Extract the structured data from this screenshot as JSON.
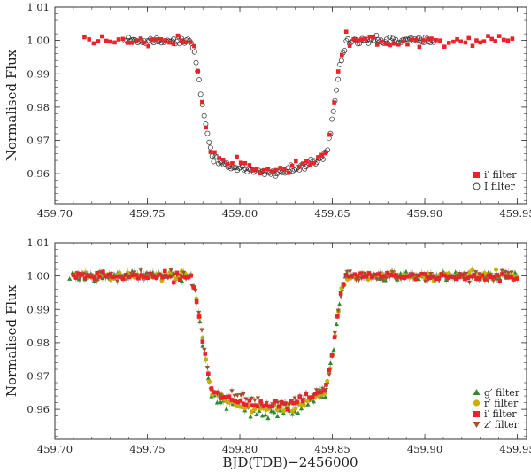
{
  "chart_data": [
    {
      "type": "scatter",
      "ylabel": "Normalised Flux",
      "xlabel": "",
      "xlim": [
        459.7,
        459.955
      ],
      "ylim": [
        0.951,
        1.01
      ],
      "xticks": [
        "459.70",
        "459.75",
        "459.80",
        "459.85",
        "459.90",
        "459.95"
      ],
      "yticks": [
        "0.96",
        "0.97",
        "0.98",
        "0.99",
        "1.00",
        "1.01"
      ],
      "legend_position": "bottom-right",
      "transit_model": {
        "baseline": 1.0,
        "t1": 459.7725,
        "t2": 459.7865,
        "t3": 459.8445,
        "t4": 459.8585,
        "mid": 459.8155,
        "bottom": 0.9607
      },
      "series": [
        {
          "name": "i′ filter",
          "marker": "square",
          "color": "#e8232b",
          "cadence": 0.0022,
          "x_range": [
            459.716,
            459.948
          ],
          "scatter": 0.0008,
          "offset": 0.0007,
          "error_bars": false
        },
        {
          "name": "I filter",
          "marker": "open-circle",
          "color": "#333333",
          "cadence": 0.00085,
          "x_range": [
            459.738,
            459.905
          ],
          "scatter": 0.0006,
          "offset": -0.0004,
          "error_bars": false
        }
      ]
    },
    {
      "type": "scatter",
      "ylabel": "Normalised Flux",
      "xlabel": "BJD(TDB)−2456000",
      "xlim": [
        459.7,
        459.955
      ],
      "ylim": [
        0.951,
        1.01
      ],
      "xticks": [
        "459.70",
        "459.75",
        "459.80",
        "459.85",
        "459.90",
        "459.95"
      ],
      "yticks": [
        "0.96",
        "0.97",
        "0.98",
        "0.99",
        "1.00",
        "1.01"
      ],
      "legend_position": "bottom-right",
      "transit_model": {
        "baseline": 1.0,
        "t1": 459.7725,
        "t2": 459.7865,
        "t3": 459.8445,
        "t4": 459.8585,
        "mid": 459.8155,
        "bottom": 0.9607
      },
      "series": [
        {
          "name": "g′ filter",
          "marker": "triangle",
          "color": "#2f8a2f",
          "cadence": 0.0016,
          "x_range": [
            459.708,
            459.95
          ],
          "scatter": 0.0007,
          "offset": -0.0022,
          "error_bars": true
        },
        {
          "name": "r′ filter",
          "marker": "circle",
          "color": "#c7b000",
          "cadence": 0.0016,
          "x_range": [
            459.71,
            459.95
          ],
          "scatter": 0.0007,
          "offset": -0.0006,
          "error_bars": true
        },
        {
          "name": "i′ filter",
          "marker": "square",
          "color": "#e8232b",
          "cadence": 0.0016,
          "x_range": [
            459.71,
            459.95
          ],
          "scatter": 0.0007,
          "offset": 0.0007,
          "error_bars": true
        },
        {
          "name": "z′ filter",
          "marker": "triangle-down",
          "color": "#a0522d",
          "cadence": 0.0016,
          "x_range": [
            459.712,
            459.948
          ],
          "scatter": 0.0009,
          "offset": 0.0014,
          "error_bars": true
        }
      ]
    }
  ]
}
